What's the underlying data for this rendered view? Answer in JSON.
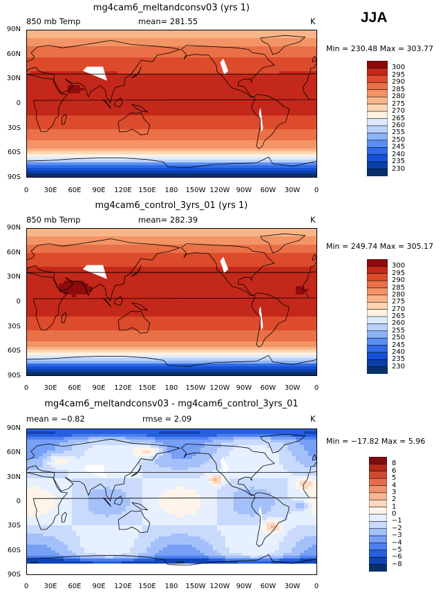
{
  "season": "JJA",
  "colors": {
    "temp_scale": [
      "#08306b",
      "#0b3fa8",
      "#1450d8",
      "#2f6ae6",
      "#5c8ef2",
      "#8db3f7",
      "#b9d1fb",
      "#ddeaff",
      "#fff1e0",
      "#fcd6b4",
      "#f9b58a",
      "#f39466",
      "#ea7047",
      "#dc4b2b",
      "#c4281a",
      "#8d0b0b"
    ],
    "diff_scale": [
      "#08306b",
      "#1144b8",
      "#2760de",
      "#4b80ee",
      "#779ff6",
      "#a4c0fa",
      "#c9dafd",
      "#e6f0ff",
      "#fff4ea",
      "#fbd9c0",
      "#f6b795",
      "#ef946f",
      "#e36d4b",
      "#d14a30",
      "#b3281d",
      "#7e0e0e"
    ]
  },
  "panels": [
    {
      "id": "meltandconsv03",
      "title": "mg4cam6_meltandconsv03 (yrs 1)",
      "left_label": "850 mb Temp",
      "center_label": "mean= 281.55",
      "right_label": "K",
      "stats": "Min = 230.48 Max = 303.77",
      "colorbar_labels": [
        "300",
        "295",
        "290",
        "285",
        "280",
        "275",
        "270",
        "265",
        "260",
        "255",
        "250",
        "245",
        "240",
        "235",
        "230"
      ],
      "bias": 0
    },
    {
      "id": "control",
      "title": "mg4cam6_control_3yrs_01 (yrs 1)",
      "left_label": "850 mb Temp",
      "center_label": "mean= 282.39",
      "right_label": "K",
      "stats": "Min = 249.74 Max = 305.17",
      "colorbar_labels": [
        "300",
        "295",
        "290",
        "285",
        "280",
        "275",
        "270",
        "265",
        "260",
        "255",
        "250",
        "245",
        "240",
        "235",
        "230"
      ],
      "bias": 1
    },
    {
      "id": "difference",
      "title": "mg4cam6_meltandconsv03 - mg4cam6_control_3yrs_01",
      "left_label": "mean =  −0.82",
      "center_label": "rmse =    2.09",
      "right_label": "K",
      "stats": "Min = −17.82 Max =    5.96",
      "colorbar_labels": [
        "8",
        "6",
        "5",
        "4",
        "3",
        "2",
        "1",
        "0",
        "−1",
        "−2",
        "−3",
        "−4",
        "−5",
        "−6",
        "−8"
      ],
      "bias": 0
    }
  ],
  "lat_labels": [
    "90N",
    "60N",
    "30N",
    "0",
    "30S",
    "60S",
    "90S"
  ],
  "lon_labels": [
    "0",
    "30E",
    "60E",
    "90E",
    "120E",
    "150E",
    "180",
    "150W",
    "120W",
    "90W",
    "60W",
    "30W",
    "0"
  ]
}
